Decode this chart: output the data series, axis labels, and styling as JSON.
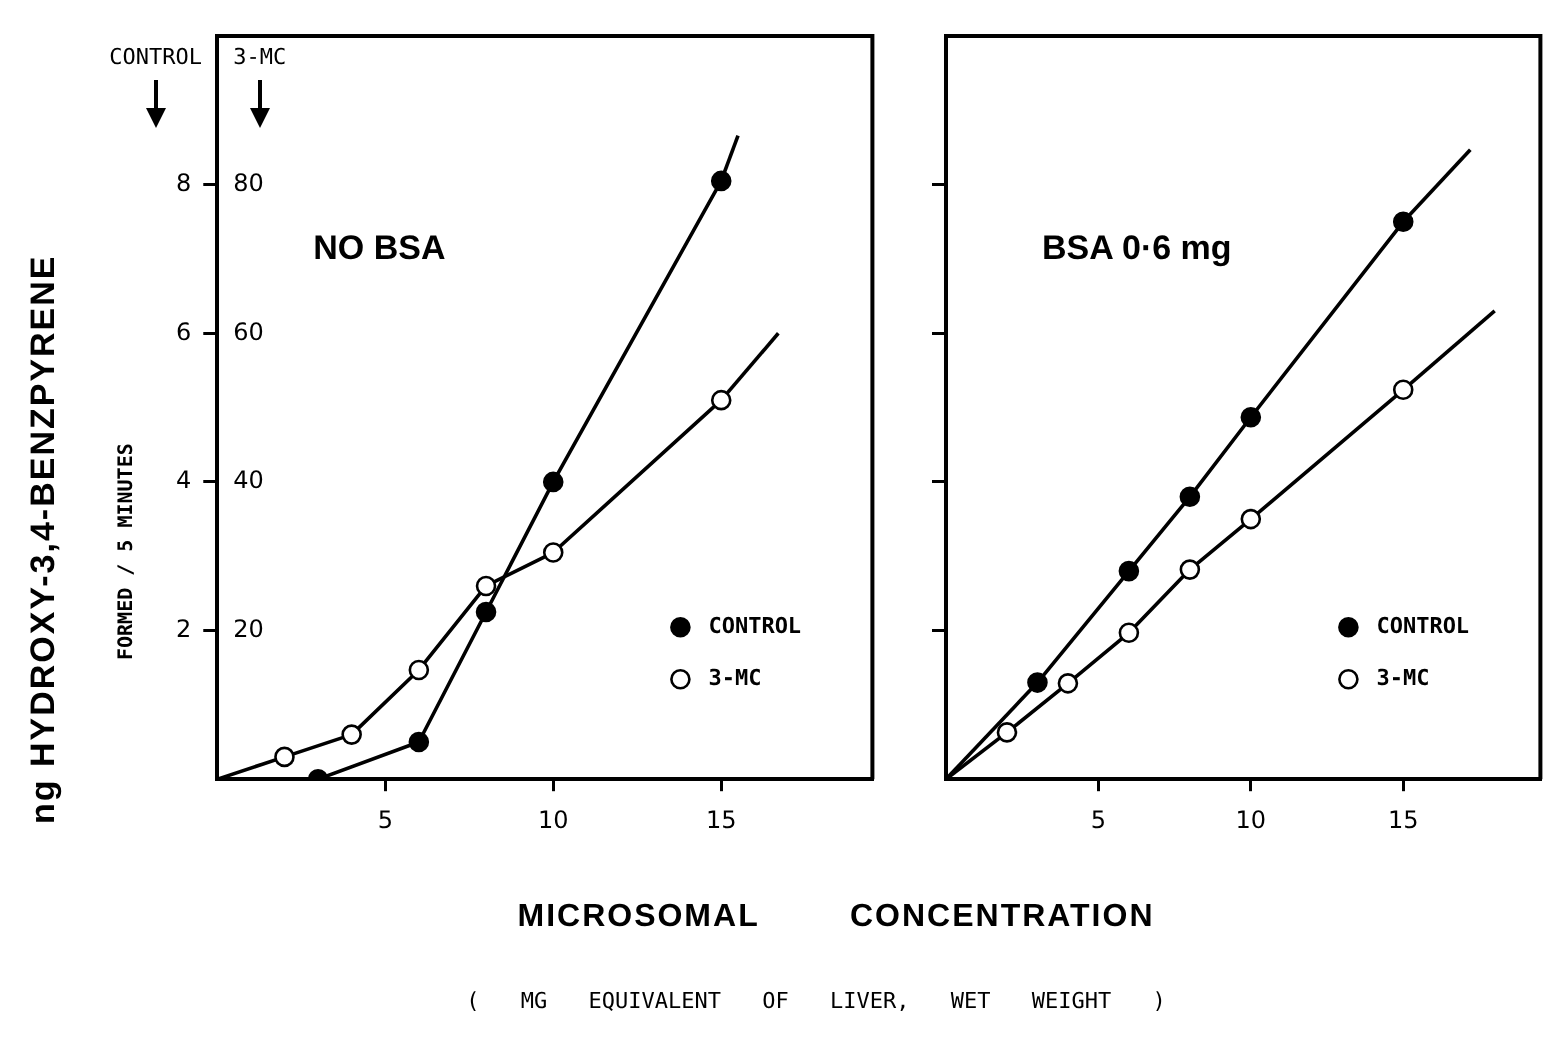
{
  "chart_data": [
    {
      "type": "line",
      "title": "NO BSA",
      "ylabel": "CONTROL",
      "y2label": "3-MC",
      "xlabel": "MICROSOMAL CONCENTRATION",
      "annotations": [
        "ng HYDROXY-3,4-BENZPYRENE",
        "FORMED / 5 MINUTES",
        "( MG EQUIVALENT OF LIVER, WET WEIGHT )"
      ],
      "xlim": [
        0,
        19.5
      ],
      "xticks": [
        5,
        10,
        15
      ],
      "ylim": [
        0,
        10
      ],
      "yticks": [
        2,
        4,
        6,
        8
      ],
      "y2lim": [
        0,
        100
      ],
      "y2ticks": [
        20,
        40,
        60,
        80
      ],
      "grid": false,
      "legend": "bottom right",
      "marker": "circle",
      "line_style": "solid",
      "series": [
        {
          "name": "CONTROL",
          "color": "#000000",
          "x": [
            3,
            6,
            8,
            10,
            15
          ],
          "values": [
            0,
            0.5,
            2.25,
            4,
            8.05
          ]
        },
        {
          "name": "3-MC",
          "color": "#000000",
          "axis": "y2",
          "x": [
            2,
            4,
            6,
            8,
            10,
            15
          ],
          "values": [
            3,
            6,
            14.7,
            26,
            30.5,
            51
          ]
        },
        {
          "type": "line",
          "color": "#000000",
          "marker": "none",
          "axis": "y2",
          "x": [
            0,
            2
          ],
          "values": [
            0,
            3
          ]
        },
        {
          "type": "line",
          "color": "#000000",
          "marker": "none",
          "x": [
            15,
            15.5
          ],
          "values": [
            8.05,
            8.66
          ]
        },
        {
          "type": "line",
          "color": "#000000",
          "marker": "none",
          "axis": "y2",
          "x": [
            15,
            16.7
          ],
          "values": [
            51,
            60
          ]
        }
      ]
    },
    {
      "type": "line",
      "title": "BSA 0·6 mg",
      "xlim": [
        0,
        19.5
      ],
      "xticks": [
        5,
        10,
        15
      ],
      "ylim": [
        0,
        10
      ],
      "yticks": [
        2,
        4,
        6,
        8
      ],
      "y2lim": [
        0,
        100
      ],
      "grid": false,
      "legend": "bottom right",
      "marker": "circle",
      "line_style": "solid",
      "tick_labels": "x",
      "series": [
        {
          "name": "CONTROL",
          "color": "#000000",
          "x": [
            3,
            6,
            8,
            10,
            15
          ],
          "values": [
            1.3,
            2.8,
            3.8,
            4.87,
            7.5
          ]
        },
        {
          "name": "3-MC",
          "color": "#000000",
          "axis": "y2",
          "x": [
            2,
            4,
            6,
            8,
            10,
            15
          ],
          "values": [
            6.3,
            12.9,
            19.7,
            28.2,
            35,
            52.4
          ]
        },
        {
          "type": "line",
          "color": "#000000",
          "marker": "none",
          "x": [
            0,
            3
          ],
          "values": [
            0,
            1.3
          ]
        },
        {
          "type": "line",
          "color": "#000000",
          "marker": "none",
          "axis": "y2",
          "x": [
            0,
            2
          ],
          "values": [
            0,
            6.3
          ]
        },
        {
          "type": "line",
          "color": "#000000",
          "marker": "none",
          "x": [
            15,
            17.2
          ],
          "values": [
            7.5,
            8.47
          ]
        },
        {
          "type": "line",
          "color": "#000000",
          "marker": "none",
          "axis": "y2",
          "x": [
            15,
            18
          ],
          "values": [
            52.4,
            63
          ]
        }
      ]
    }
  ]
}
